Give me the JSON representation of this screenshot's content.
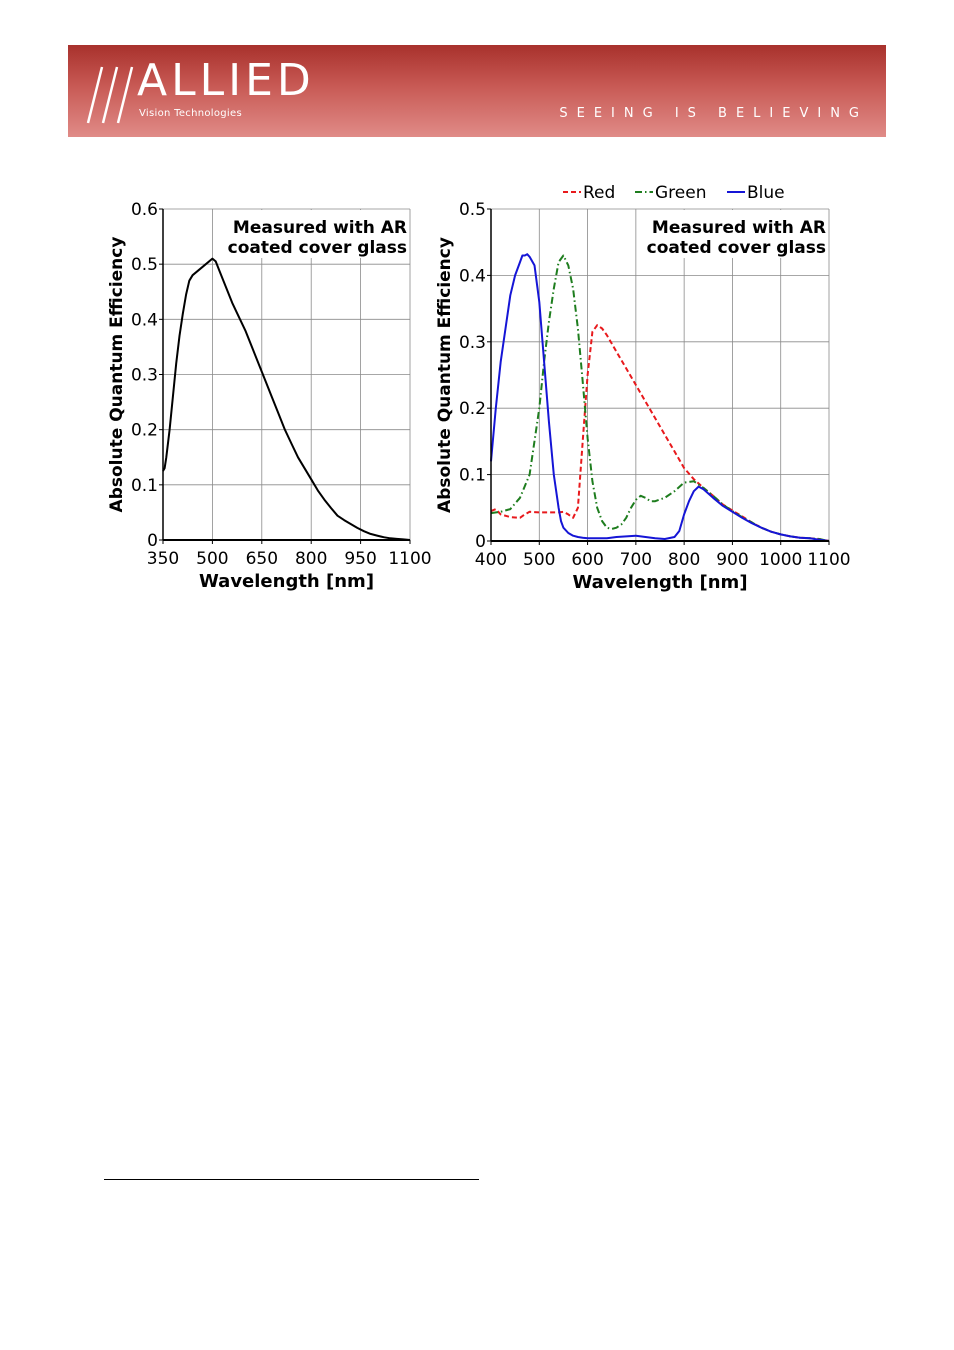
{
  "header": {
    "logo_text": "ALLIED",
    "logo_subtext": "Vision Technologies",
    "tagline": "SEEING IS BELIEVING",
    "colors": {
      "banner_top": "#a8312c",
      "banner_bottom": "#e08b87"
    }
  },
  "chart_data": [
    {
      "type": "line",
      "title": "",
      "annotation": [
        "Measured with AR",
        "coated cover glass"
      ],
      "xlabel": "Wavelength [nm]",
      "ylabel": "Absolute Quantum Efficiency",
      "xlim": [
        350,
        1100
      ],
      "ylim": [
        0,
        0.6
      ],
      "xticks": [
        350,
        500,
        650,
        800,
        950,
        1100
      ],
      "yticks": [
        0,
        0.1,
        0.2,
        0.3,
        0.4,
        0.5,
        0.6
      ],
      "ytick_labels": [
        "0",
        "0.1",
        "0.2",
        "0.3",
        "0.4",
        "0.5",
        "0.6"
      ],
      "grid": true,
      "series": [
        {
          "color": "#000000",
          "dash": "",
          "x": [
            350,
            355,
            360,
            370,
            380,
            390,
            400,
            410,
            420,
            430,
            440,
            460,
            480,
            500,
            510,
            520,
            540,
            560,
            580,
            600,
            620,
            640,
            660,
            680,
            700,
            720,
            740,
            760,
            780,
            800,
            820,
            840,
            860,
            880,
            900,
            920,
            940,
            960,
            980,
            1000,
            1020,
            1040,
            1060,
            1080,
            1100
          ],
          "y": [
            0.125,
            0.13,
            0.15,
            0.2,
            0.26,
            0.32,
            0.37,
            0.41,
            0.445,
            0.47,
            0.48,
            0.49,
            0.5,
            0.51,
            0.505,
            0.49,
            0.46,
            0.43,
            0.405,
            0.38,
            0.35,
            0.32,
            0.29,
            0.26,
            0.23,
            0.2,
            0.175,
            0.15,
            0.13,
            0.11,
            0.09,
            0.073,
            0.058,
            0.044,
            0.036,
            0.029,
            0.022,
            0.016,
            0.011,
            0.008,
            0.005,
            0.003,
            0.002,
            0.001,
            0.0
          ]
        }
      ]
    },
    {
      "type": "line",
      "title": "",
      "annotation": [
        "Measured with AR",
        "coated cover glass"
      ],
      "xlabel": "Wavelength [nm]",
      "ylabel": "Absolute Quantum Efficiency",
      "xlim": [
        400,
        1100
      ],
      "ylim": [
        0,
        0.5
      ],
      "xticks": [
        400,
        500,
        600,
        700,
        800,
        900,
        1000,
        1100
      ],
      "yticks": [
        0,
        0.1,
        0.2,
        0.3,
        0.4,
        0.5
      ],
      "ytick_labels": [
        "0",
        "0.1",
        "0.2",
        "0.3",
        "0.4",
        "0.5"
      ],
      "grid": true,
      "legend_position": "top",
      "series": [
        {
          "name": "Red",
          "color": "#e8191c",
          "dash": "5,3",
          "x": [
            400,
            410,
            420,
            440,
            460,
            470,
            480,
            500,
            520,
            540,
            550,
            560,
            570,
            580,
            590,
            600,
            610,
            620,
            630,
            640,
            660,
            680,
            700,
            720,
            740,
            760,
            780,
            800,
            820,
            840,
            860,
            880,
            900,
            920,
            940,
            960,
            980,
            1000,
            1020,
            1040,
            1060,
            1080,
            1100
          ],
          "y": [
            0.045,
            0.048,
            0.04,
            0.036,
            0.035,
            0.04,
            0.044,
            0.043,
            0.043,
            0.043,
            0.044,
            0.04,
            0.035,
            0.05,
            0.15,
            0.25,
            0.315,
            0.325,
            0.32,
            0.31,
            0.285,
            0.26,
            0.235,
            0.21,
            0.185,
            0.16,
            0.135,
            0.11,
            0.093,
            0.08,
            0.068,
            0.055,
            0.046,
            0.037,
            0.028,
            0.02,
            0.014,
            0.01,
            0.007,
            0.005,
            0.004,
            0.003,
            0.0
          ]
        },
        {
          "name": "Green",
          "color": "#1e7d1e",
          "dash": "7,3,1.5,3",
          "x": [
            400,
            420,
            440,
            460,
            480,
            500,
            510,
            520,
            530,
            540,
            550,
            560,
            570,
            580,
            590,
            600,
            610,
            620,
            630,
            640,
            650,
            660,
            670,
            680,
            690,
            700,
            710,
            720,
            730,
            740,
            760,
            780,
            800,
            820,
            840,
            860,
            880,
            900,
            920,
            940,
            960,
            980,
            1000,
            1020,
            1040,
            1060,
            1080,
            1100
          ],
          "y": [
            0.042,
            0.044,
            0.048,
            0.065,
            0.1,
            0.2,
            0.27,
            0.33,
            0.38,
            0.42,
            0.43,
            0.415,
            0.38,
            0.32,
            0.24,
            0.155,
            0.09,
            0.05,
            0.03,
            0.02,
            0.018,
            0.02,
            0.025,
            0.035,
            0.05,
            0.062,
            0.068,
            0.065,
            0.06,
            0.06,
            0.065,
            0.075,
            0.088,
            0.09,
            0.08,
            0.068,
            0.055,
            0.045,
            0.036,
            0.028,
            0.02,
            0.014,
            0.01,
            0.007,
            0.005,
            0.004,
            0.003,
            0.0
          ]
        },
        {
          "name": "Blue",
          "color": "#1515d6",
          "dash": "",
          "x": [
            400,
            410,
            420,
            430,
            440,
            450,
            460,
            465,
            470,
            475,
            480,
            490,
            500,
            510,
            520,
            530,
            540,
            545,
            550,
            560,
            570,
            580,
            590,
            600,
            620,
            640,
            660,
            680,
            700,
            720,
            740,
            760,
            780,
            790,
            800,
            810,
            820,
            830,
            840,
            860,
            880,
            900,
            920,
            940,
            960,
            980,
            1000,
            1020,
            1040,
            1060,
            1080,
            1100
          ],
          "y": [
            0.12,
            0.2,
            0.27,
            0.32,
            0.37,
            0.4,
            0.42,
            0.43,
            0.43,
            0.432,
            0.428,
            0.415,
            0.36,
            0.27,
            0.18,
            0.1,
            0.05,
            0.03,
            0.02,
            0.012,
            0.008,
            0.006,
            0.005,
            0.004,
            0.004,
            0.004,
            0.006,
            0.007,
            0.008,
            0.006,
            0.004,
            0.003,
            0.006,
            0.015,
            0.04,
            0.06,
            0.075,
            0.082,
            0.078,
            0.065,
            0.053,
            0.044,
            0.035,
            0.027,
            0.02,
            0.014,
            0.01,
            0.007,
            0.005,
            0.004,
            0.002,
            0.0
          ]
        }
      ]
    }
  ]
}
